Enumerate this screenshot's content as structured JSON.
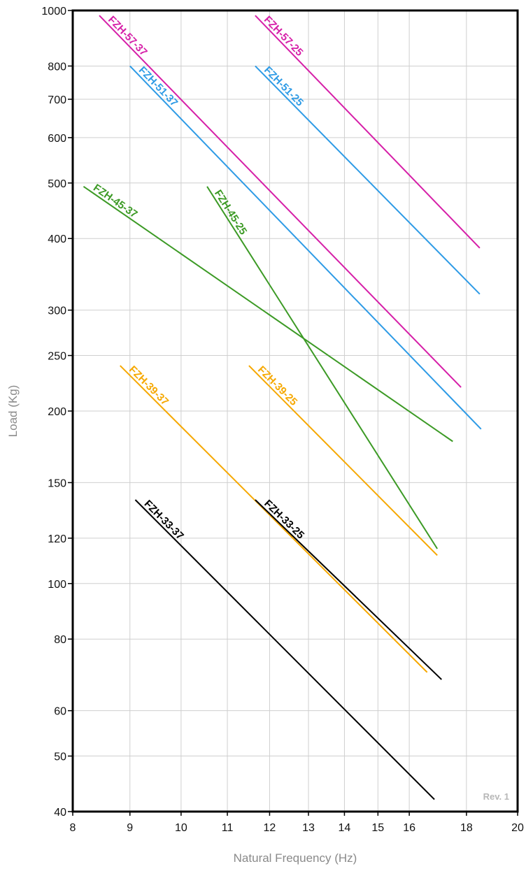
{
  "chart_data": {
    "type": "line",
    "xlabel": "Natural Frequency (Hz)",
    "ylabel": "Load (Kg)",
    "x_scale": "log",
    "y_scale": "log",
    "xlim": [
      8,
      20
    ],
    "ylim": [
      40,
      1000
    ],
    "grid": true,
    "x_ticks": [
      8,
      9,
      10,
      11,
      12,
      13,
      14,
      15,
      16,
      18,
      20
    ],
    "y_ticks": [
      40,
      50,
      60,
      80,
      100,
      120,
      150,
      200,
      250,
      300,
      400,
      500,
      600,
      700,
      800,
      1000
    ],
    "annotation": "Rev. 1",
    "series": [
      {
        "name": "FZH-57-37",
        "color": "#d61fa8",
        "x": [
          8.45,
          17.8
        ],
        "y": [
          980,
          220
        ]
      },
      {
        "name": "FZH-57-25",
        "color": "#d61fa8",
        "x": [
          11.65,
          18.5
        ],
        "y": [
          980,
          385
        ]
      },
      {
        "name": "FZH-51-37",
        "color": "#2e9be6",
        "x": [
          9.0,
          18.55
        ],
        "y": [
          800,
          186
        ]
      },
      {
        "name": "FZH-51-25",
        "color": "#2e9be6",
        "x": [
          11.65,
          18.5
        ],
        "y": [
          800,
          320
        ]
      },
      {
        "name": "FZH-45-37",
        "color": "#3c9a25",
        "x": [
          8.18,
          17.5
        ],
        "y": [
          493,
          177
        ]
      },
      {
        "name": "FZH-45-25",
        "color": "#3c9a25",
        "x": [
          10.55,
          16.95
        ],
        "y": [
          493,
          115
        ]
      },
      {
        "name": "FZH-39-37",
        "color": "#f6a800",
        "x": [
          8.82,
          16.6
        ],
        "y": [
          240,
          70
        ]
      },
      {
        "name": "FZH-39-25",
        "color": "#f6a800",
        "x": [
          11.5,
          16.95
        ],
        "y": [
          240,
          112
        ]
      },
      {
        "name": "FZH-33-37",
        "color": "#000000",
        "x": [
          9.1,
          16.85
        ],
        "y": [
          140,
          42
        ]
      },
      {
        "name": "FZH-33-25",
        "color": "#000000",
        "x": [
          11.65,
          17.1
        ],
        "y": [
          140,
          68
        ]
      }
    ]
  }
}
